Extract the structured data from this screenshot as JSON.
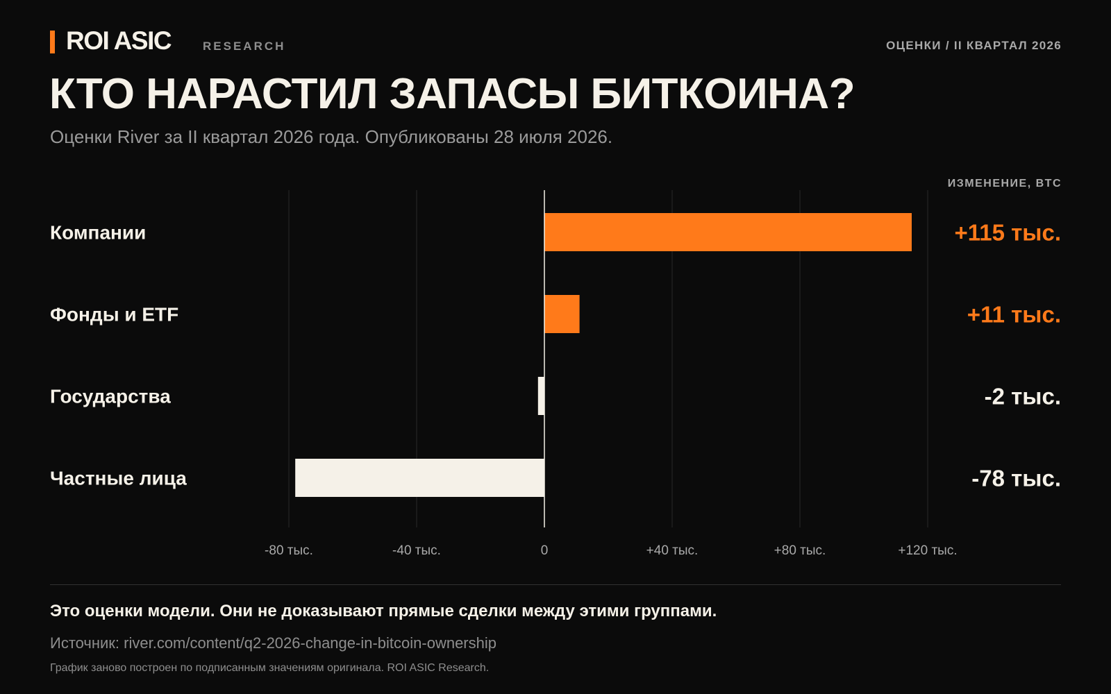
{
  "header": {
    "brand": "ROI ASIC",
    "brand_sub": "RESEARCH",
    "top_right": "ОЦЕНКИ / II КВАРТАЛ 2026"
  },
  "colors": {
    "background": "#0b0b0b",
    "accent": "#ff7a1a",
    "negative": "#f5f1e8",
    "text": "#f5f1e8",
    "muted": "#9b9b9b"
  },
  "chart_data": {
    "type": "bar",
    "orientation": "horizontal",
    "title": "КТО НАРАСТИЛ ЗАПАСЫ БИТКОИНА?",
    "subtitle": "Оценки River за II квартал 2026 года. Опубликованы 28 июля 2026.",
    "value_header": "ИЗМЕНЕНИЕ, BTC",
    "categories": [
      "Компании",
      "Фонды и ETF",
      "Государства",
      "Частные лица"
    ],
    "values": [
      115000,
      11000,
      -2000,
      -78000
    ],
    "value_labels": [
      "+115 тыс.",
      "+11 тыс.",
      "-2 тыс.",
      "-78 тыс."
    ],
    "xlim": [
      -80000,
      120000
    ],
    "ticks": [
      -80000,
      -40000,
      0,
      40000,
      80000,
      120000
    ],
    "tick_labels": [
      "-80 тыс.",
      "-40 тыс.",
      "0",
      "+40 тыс.",
      "+80 тыс.",
      "+120 тыс."
    ],
    "grid": true,
    "legend": "none"
  },
  "footer": {
    "note": "Это оценки модели. Они не доказывают прямые сделки между этими группами.",
    "source": "Источник: river.com/content/q2-2026-change-in-bitcoin-ownership",
    "credit": "График заново построен по подписанным значениям оригинала. ROI ASIC Research."
  }
}
